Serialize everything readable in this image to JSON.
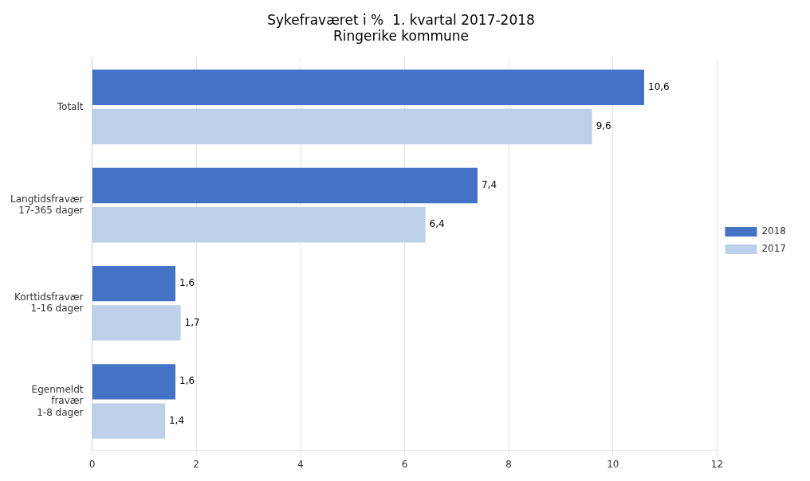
{
  "chart_data": {
    "type": "bar",
    "orientation": "horizontal",
    "title": "Sykefraværet i %  1. kvartal 2017-2018\nRingerike kommune",
    "categories": [
      "Totalt",
      "Langtidsfravær\n17-365 dager",
      "Korttidsfravær\n1-16 dager",
      "Egenmeldt\nfravær\n1-8 dager"
    ],
    "series": [
      {
        "name": "2018",
        "color": "#4472C4",
        "values": [
          10.6,
          7.4,
          1.6,
          1.6
        ],
        "value_labels": [
          "10,6",
          "7,4",
          "1,6",
          "1,6"
        ]
      },
      {
        "name": "2017",
        "color": "#BDD0E9",
        "values": [
          9.6,
          6.4,
          1.7,
          1.4
        ],
        "value_labels": [
          "9,6",
          "6,4",
          "1,7",
          "1,4"
        ]
      }
    ],
    "xlim": [
      0,
      12
    ],
    "xticks": [
      0,
      2,
      4,
      6,
      8,
      10,
      12
    ],
    "grid": true,
    "legend": "right",
    "data_labels": true
  }
}
